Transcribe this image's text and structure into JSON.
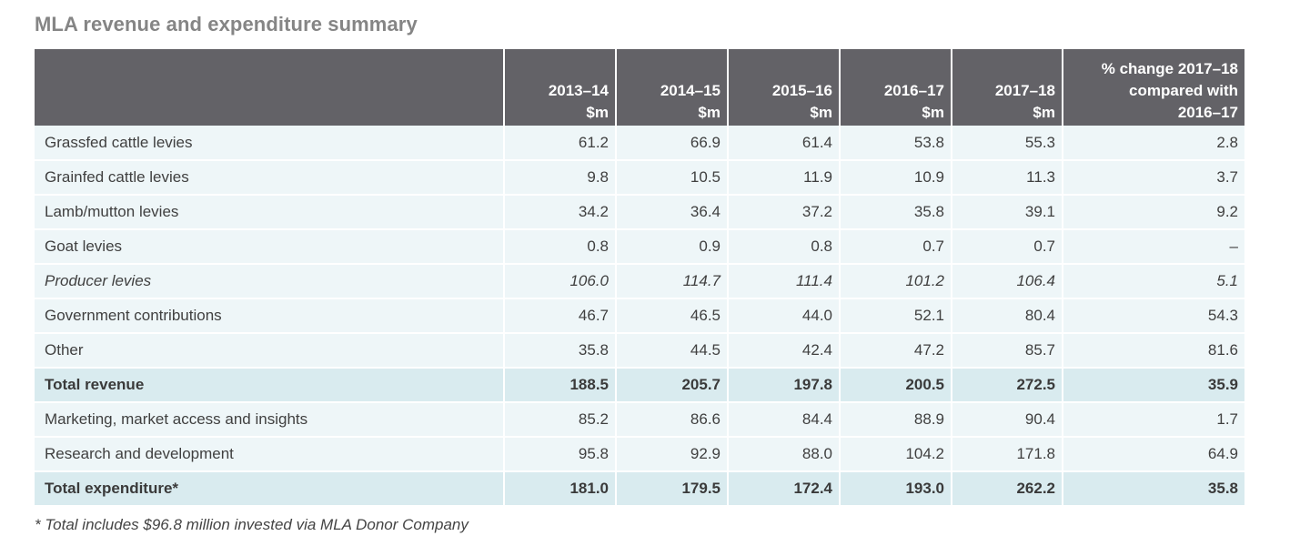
{
  "title": "MLA revenue and expenditure summary",
  "table": {
    "headers": [
      {
        "lines": [
          ""
        ]
      },
      {
        "lines": [
          "2013–14",
          "$m"
        ]
      },
      {
        "lines": [
          "2014–15",
          "$m"
        ]
      },
      {
        "lines": [
          "2015–16",
          "$m"
        ]
      },
      {
        "lines": [
          "2016–17",
          "$m"
        ]
      },
      {
        "lines": [
          "2017–18",
          "$m"
        ]
      },
      {
        "lines": [
          "% change 2017–18",
          "compared with",
          "2016–17"
        ]
      }
    ],
    "rows": [
      {
        "style": "normal",
        "cells": [
          "Grassfed cattle levies",
          "61.2",
          "66.9",
          "61.4",
          "53.8",
          "55.3",
          "2.8"
        ]
      },
      {
        "style": "normal",
        "cells": [
          "Grainfed cattle levies",
          "9.8",
          "10.5",
          "11.9",
          "10.9",
          "11.3",
          "3.7"
        ]
      },
      {
        "style": "normal",
        "cells": [
          "Lamb/mutton levies",
          "34.2",
          "36.4",
          "37.2",
          "35.8",
          "39.1",
          "9.2"
        ]
      },
      {
        "style": "normal",
        "cells": [
          "Goat levies",
          "0.8",
          "0.9",
          "0.8",
          "0.7",
          "0.7",
          "–"
        ]
      },
      {
        "style": "italic",
        "cells": [
          "Producer levies",
          "106.0",
          "114.7",
          "111.4",
          "101.2",
          "106.4",
          "5.1"
        ]
      },
      {
        "style": "normal",
        "cells": [
          "Government contributions",
          "46.7",
          "46.5",
          "44.0",
          "52.1",
          "80.4",
          "54.3"
        ]
      },
      {
        "style": "normal",
        "cells": [
          "Other",
          "35.8",
          "44.5",
          "42.4",
          "47.2",
          "85.7",
          "81.6"
        ]
      },
      {
        "style": "total",
        "cells": [
          "Total revenue",
          "188.5",
          "205.7",
          "197.8",
          "200.5",
          "272.5",
          "35.9"
        ]
      },
      {
        "style": "normal",
        "cells": [
          "Marketing, market access and insights",
          "85.2",
          "86.6",
          "84.4",
          "88.9",
          "90.4",
          "1.7"
        ]
      },
      {
        "style": "normal",
        "cells": [
          "Research and development",
          "95.8",
          "92.9",
          "88.0",
          "104.2",
          "171.8",
          "64.9"
        ]
      },
      {
        "style": "total",
        "cells": [
          "Total expenditure*",
          "181.0",
          "179.5",
          "172.4",
          "193.0",
          "262.2",
          "35.8"
        ]
      }
    ]
  },
  "footnote": "* Total includes $96.8 million invested via MLA Donor Company",
  "colors": {
    "header_bg": "#636267",
    "row_bg": "#eef6f8",
    "total_bg": "#d9ebef",
    "title": "#858585"
  }
}
